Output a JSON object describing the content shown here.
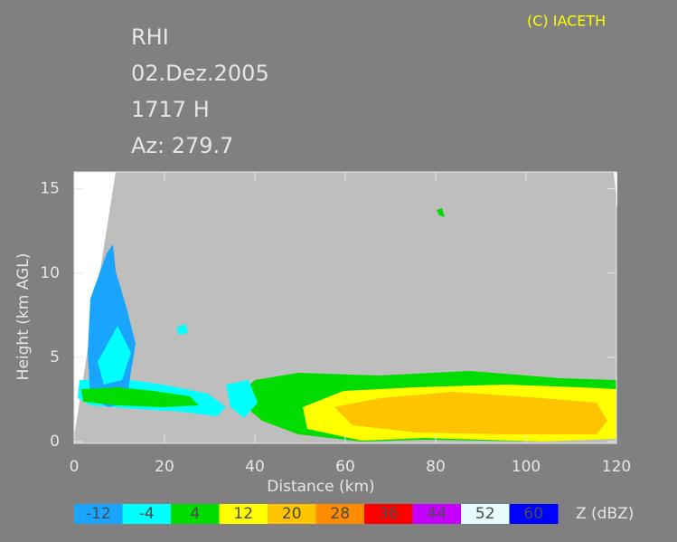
{
  "chart_data": {
    "type": "rhi",
    "annotations": [
      "RHI",
      "02.Dez.2005",
      "1717 H",
      "Az: 279.7"
    ],
    "copyright": "(C) IACETH",
    "x_label": "Distance     (km)",
    "y_label": "Height  (km AGL)",
    "xlim": [
      0,
      120
    ],
    "xticks": [
      0,
      20,
      40,
      60,
      80,
      100,
      120
    ],
    "ylim": [
      0,
      16
    ],
    "yticks": [
      0,
      5,
      10,
      15
    ],
    "colorbar": {
      "label": "Z (dBZ)",
      "levels": [
        -12,
        -4,
        4,
        12,
        20,
        28,
        36,
        44,
        52,
        60
      ],
      "colors": [
        "#19a5ff",
        "#00ffff",
        "#00dc00",
        "#ffff00",
        "#ffc400",
        "#ff8c00",
        "#ff0000",
        "#c400ff",
        "#e6fcfc",
        "#0000ff"
      ]
    }
  }
}
